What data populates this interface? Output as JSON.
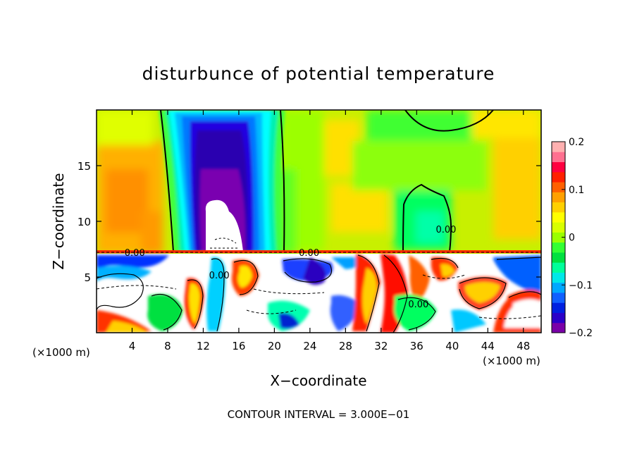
{
  "chart_data": {
    "type": "heatmap",
    "title": "disturbunce of potential temperature",
    "xlabel": "X−coordinate",
    "ylabel": "Z−coordinate",
    "x_unit_label_left": "(×1000 m)",
    "x_unit_label_right": "(×1000 m)",
    "footer": "CONTOUR INTERVAL = 3.000E−01",
    "xlim": [
      0,
      50
    ],
    "ylim": [
      0,
      20
    ],
    "x_ticks": [
      4,
      8,
      12,
      16,
      20,
      24,
      28,
      32,
      36,
      40,
      44,
      48
    ],
    "x_tick_labels": [
      "4",
      "8",
      "12",
      "16",
      "20",
      "24",
      "28",
      "32",
      "36",
      "40",
      "44",
      "48"
    ],
    "y_ticks": [
      5,
      10,
      15
    ],
    "y_tick_labels": [
      "5",
      "10",
      "15"
    ],
    "colorbar": {
      "min": -0.2,
      "max": 0.2,
      "tick_values": [
        0.2,
        0.1,
        0,
        -0.1,
        -0.2
      ],
      "tick_labels": [
        "0.2",
        "0.1",
        "0",
        "−0.1",
        "−0.2"
      ],
      "colors": [
        "#7a00a8",
        "#2b00c8",
        "#0020e0",
        "#1060ff",
        "#00a8ff",
        "#00e8e8",
        "#00ff9a",
        "#00e040",
        "#33ff33",
        "#9aff00",
        "#d8ff00",
        "#ffff00",
        "#ffd000",
        "#ffa000",
        "#ff6000",
        "#ff2000",
        "#ff0040",
        "#ff7090",
        "#ffb0b0"
      ]
    },
    "contour_labels": [
      {
        "text": "0.00",
        "x": 4.3,
        "z": 7.2
      },
      {
        "text": "0.00",
        "x": 23.9,
        "z": 7.2
      },
      {
        "text": "0.00",
        "x": 39.3,
        "z": 9.3
      },
      {
        "text": "0.00",
        "x": 13.8,
        "z": 5.2
      },
      {
        "text": "0.00",
        "x": 36.2,
        "z": 2.6
      }
    ]
  }
}
